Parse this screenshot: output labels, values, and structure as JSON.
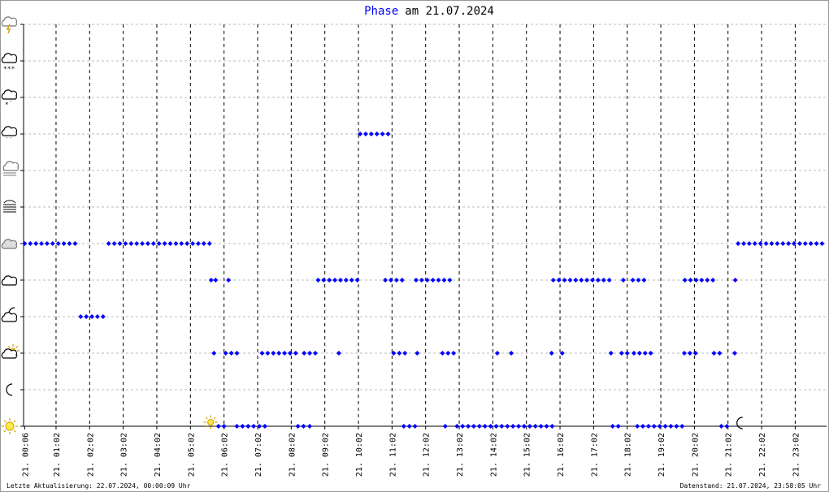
{
  "chart_data": {
    "type": "scatter",
    "title": "am 21.07.2024",
    "footer_left": "Letzte Aktualisierung: 22.07.2024, 00:00:09 Uhr",
    "footer_right": "Datenstand: 21.07.2024, 23:58:05 Uhr",
    "xlim": [
      4,
      1438
    ],
    "xticks": [
      {
        "value": 6,
        "label": "21. 00:06"
      },
      {
        "value": 62,
        "label": "21. 01:02"
      },
      {
        "value": 122,
        "label": "21. 02:02"
      },
      {
        "value": 182,
        "label": "21. 03:02"
      },
      {
        "value": 242,
        "label": "21. 04:02"
      },
      {
        "value": 302,
        "label": "21. 05:02"
      },
      {
        "value": 362,
        "label": "21. 06:02"
      },
      {
        "value": 422,
        "label": "21. 07:02"
      },
      {
        "value": 482,
        "label": "21. 08:02"
      },
      {
        "value": 542,
        "label": "21. 09:02"
      },
      {
        "value": 602,
        "label": "21. 10:02"
      },
      {
        "value": 662,
        "label": "21. 11:02"
      },
      {
        "value": 722,
        "label": "21. 12:02"
      },
      {
        "value": 782,
        "label": "21. 13:02"
      },
      {
        "value": 842,
        "label": "21. 14:02"
      },
      {
        "value": 902,
        "label": "21. 15:02"
      },
      {
        "value": 962,
        "label": "21. 16:02"
      },
      {
        "value": 1022,
        "label": "21. 17:02"
      },
      {
        "value": 1082,
        "label": "21. 18:02"
      },
      {
        "value": 1142,
        "label": "21. 19:02"
      },
      {
        "value": 1202,
        "label": "21. 20:02"
      },
      {
        "value": 1262,
        "label": "21. 21:02"
      },
      {
        "value": 1322,
        "label": "21. 22:02"
      },
      {
        "value": 1382,
        "label": "21. 23:02"
      }
    ],
    "ylim": [
      0,
      11
    ],
    "yticks": [
      0,
      1,
      2,
      3,
      4,
      5,
      6,
      7,
      8,
      9,
      10,
      11
    ],
    "grid": true,
    "sunrise": 338,
    "sunset": 1275,
    "series": [
      {
        "name": "Phase",
        "color": "#0000ff",
        "x": [
          6,
          16,
          26,
          36,
          46,
          56,
          66,
          76,
          86,
          96,
          106,
          116,
          126,
          136,
          146,
          156,
          166,
          176,
          186,
          196,
          206,
          216,
          226,
          236,
          246,
          256,
          266,
          276,
          286,
          296,
          306,
          316,
          326,
          336,
          605,
          615,
          625,
          635,
          645,
          655,
          1280,
          1290,
          1300,
          1310,
          1320,
          1330,
          1340,
          1350,
          1360,
          1370,
          1380,
          1390,
          1400,
          1410,
          1420,
          1430,
          339,
          347,
          370,
          530,
          540,
          550,
          560,
          570,
          580,
          590,
          600,
          650,
          660,
          670,
          680,
          705,
          715,
          725,
          735,
          745,
          755,
          765,
          950,
          960,
          970,
          980,
          990,
          1000,
          1010,
          1020,
          1030,
          1040,
          1050,
          1075,
          1092,
          1102,
          1112,
          1185,
          1195,
          1205,
          1215,
          1225,
          1235,
          1275,
          344,
          365,
          375,
          385,
          430,
          440,
          450,
          460,
          470,
          480,
          490,
          505,
          515,
          525,
          567,
          665,
          675,
          685,
          707,
          752,
          762,
          772,
          850,
          875,
          947,
          966,
          1053,
          1072,
          1082,
          1094,
          1104,
          1114,
          1124,
          1184,
          1194,
          1204,
          1237,
          1247,
          1274,
          352,
          362,
          385,
          395,
          405,
          415,
          425,
          435,
          494,
          504,
          515,
          683,
          693,
          703,
          757,
          778,
          788,
          798,
          808,
          818,
          828,
          838,
          848,
          858,
          868,
          878,
          888,
          898,
          908,
          918,
          928,
          938,
          948,
          1056,
          1066,
          1100,
          1110,
          1120,
          1130,
          1140,
          1150,
          1160,
          1170,
          1180,
          1250,
          1260
        ],
        "values": [
          5,
          5,
          5,
          5,
          5,
          5,
          5,
          5,
          5,
          5,
          3,
          3,
          3,
          3,
          3,
          5,
          5,
          5,
          5,
          5,
          5,
          5,
          5,
          5,
          5,
          5,
          5,
          5,
          5,
          5,
          5,
          5,
          5,
          5,
          8,
          8,
          8,
          8,
          8,
          8,
          5,
          5,
          5,
          5,
          5,
          5,
          5,
          5,
          5,
          5,
          5,
          5,
          5,
          5,
          5,
          5,
          4,
          4,
          4,
          4,
          4,
          4,
          4,
          4,
          4,
          4,
          4,
          4,
          4,
          4,
          4,
          4,
          4,
          4,
          4,
          4,
          4,
          4,
          4,
          4,
          4,
          4,
          4,
          4,
          4,
          4,
          4,
          4,
          4,
          4,
          4,
          4,
          4,
          4,
          4,
          4,
          4,
          4,
          4,
          4,
          2,
          2,
          2,
          2,
          2,
          2,
          2,
          2,
          2,
          2,
          2,
          2,
          2,
          2,
          2,
          2,
          2,
          2,
          2,
          2,
          2,
          2,
          2,
          2,
          2,
          2,
          2,
          2,
          2,
          2,
          2,
          2,
          2,
          2,
          2,
          2,
          2,
          2,
          2,
          0,
          0,
          0,
          0,
          0,
          0,
          0,
          0,
          0,
          0,
          0,
          0,
          0,
          0,
          0,
          0,
          0,
          0,
          0,
          0,
          0,
          0,
          0,
          0,
          0,
          0,
          0,
          0,
          0,
          0,
          0,
          0,
          0,
          0,
          0,
          0,
          0,
          0,
          0,
          0,
          0,
          0,
          0,
          0,
          0,
          0
        ]
      }
    ]
  }
}
